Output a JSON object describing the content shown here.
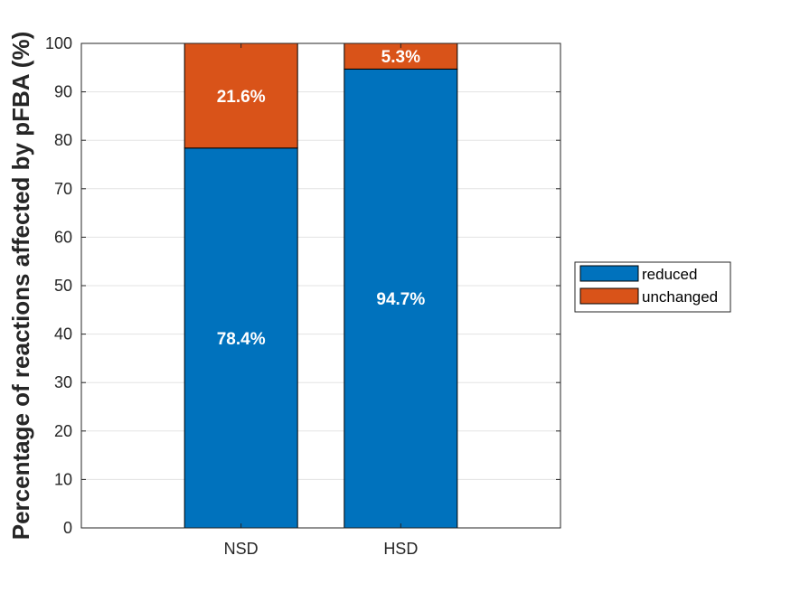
{
  "chart_data": {
    "type": "bar",
    "stacked": true,
    "categories": [
      "NSD",
      "HSD"
    ],
    "series": [
      {
        "name": "reduced",
        "values": [
          78.4,
          94.7
        ],
        "labels": [
          "78.4%",
          "94.7%"
        ],
        "color": "#0072BD"
      },
      {
        "name": "unchanged",
        "values": [
          21.6,
          5.3
        ],
        "labels": [
          "21.6%",
          "5.3%"
        ],
        "color": "#D95319"
      }
    ],
    "title": "",
    "xlabel": "",
    "ylabel": "Percentage of reactions affected by pFBA (%)",
    "ylim": [
      0,
      100
    ],
    "yticks": [
      0,
      10,
      20,
      30,
      40,
      50,
      60,
      70,
      80,
      90,
      100
    ],
    "xlim": [
      0,
      3
    ],
    "grid": true,
    "legend_position": "outside-right"
  }
}
